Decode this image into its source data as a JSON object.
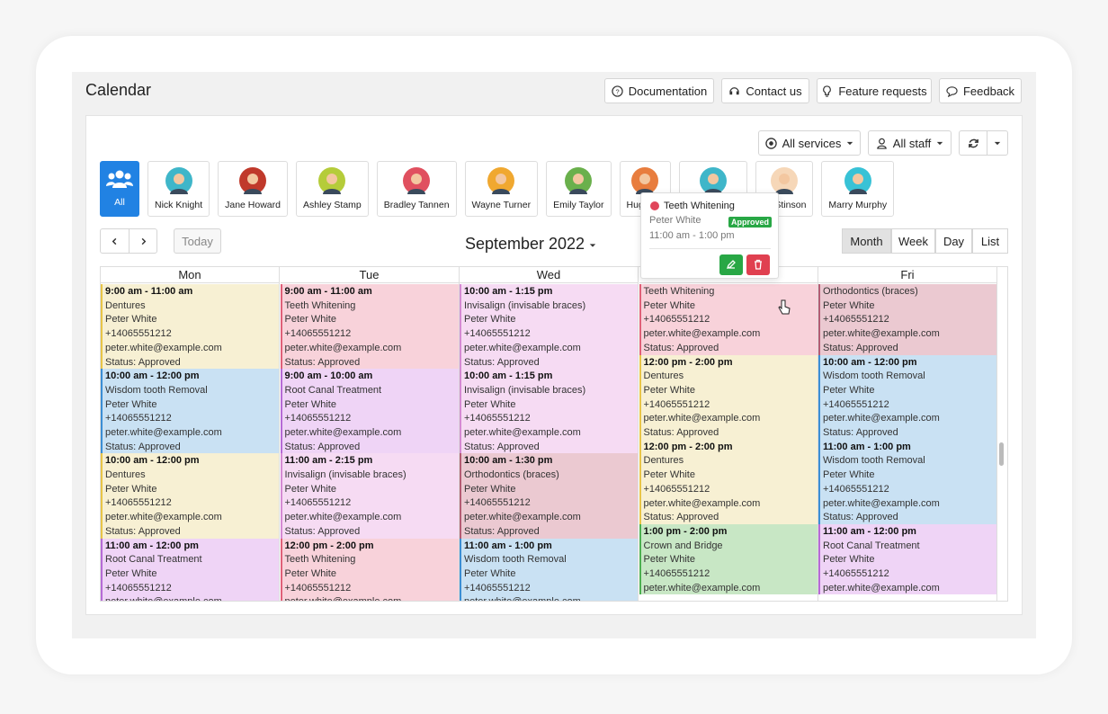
{
  "header": {
    "title": "Calendar",
    "buttons": [
      "Documentation",
      "Contact us",
      "Feature requests",
      "Feedback"
    ]
  },
  "filters": {
    "services": "All services",
    "staff": "All staff"
  },
  "staff": [
    {
      "name": "All",
      "avatar_color": "#1e7fe0"
    },
    {
      "name": "Nick Knight",
      "avatar_color": "#3fb6c9"
    },
    {
      "name": "Jane Howard",
      "avatar_color": "#c0392b"
    },
    {
      "name": "Ashley Stamp",
      "avatar_color": "#b5cc3a"
    },
    {
      "name": "Bradley Tannen",
      "avatar_color": "#e0505f"
    },
    {
      "name": "Wayne Turner",
      "avatar_color": "#f0a830"
    },
    {
      "name": "Emily Taylor",
      "avatar_color": "#6ab04c"
    },
    {
      "name": "Hugh Ca",
      "avatar_color": "#e87d3e"
    },
    {
      "avatar_color": "#3fb6c9"
    },
    {
      "name": "cy Stinson",
      "avatar_color": "#f6d7b8"
    },
    {
      "name": "Marry Murphy",
      "avatar_color": "#38c2d6"
    }
  ],
  "nav": {
    "today": "Today",
    "title": "September 2022",
    "views": [
      "Month",
      "Week",
      "Day",
      "List"
    ],
    "active_view": 0
  },
  "columns": [
    {
      "day": "Mon",
      "events": [
        {
          "time": "9:00 am - 11:00 am",
          "service": "Dentures",
          "client": "Peter White",
          "phone": "+14065551212",
          "email": "peter.white@example.com",
          "status": "Status: Approved",
          "color": "#f7f0d3",
          "border": "#e8c547"
        },
        {
          "time": "10:00 am - 12:00 pm",
          "service": "Wisdom tooth Removal",
          "client": "Peter White",
          "phone": "+14065551212",
          "email": "peter.white@example.com",
          "status": "Status: Approved",
          "color": "#c9e1f3",
          "border": "#3b8ed4"
        },
        {
          "time": "10:00 am - 12:00 pm",
          "service": "Dentures",
          "client": "Peter White",
          "phone": "+14065551212",
          "email": "peter.white@example.com",
          "status": "Status: Approved",
          "color": "#f7f0d3",
          "border": "#e8c547"
        },
        {
          "time": "11:00 am - 12:00 pm",
          "service": "Root Canal Treatment",
          "client": "Peter White",
          "phone": "+14065551212",
          "email": "peter.white@example.com",
          "color": "#efd4f6",
          "border": "#b66ad6"
        }
      ]
    },
    {
      "day": "Tue",
      "events": [
        {
          "time": "9:00 am - 11:00 am",
          "service": "Teeth Whitening",
          "client": "Peter White",
          "phone": "+14065551212",
          "email": "peter.white@example.com",
          "status": "Status: Approved",
          "color": "#f8d2da",
          "border": "#e06078"
        },
        {
          "time": "9:00 am - 10:00 am",
          "service": "Root Canal Treatment",
          "client": "Peter White",
          "phone": "+14065551212",
          "email": "peter.white@example.com",
          "status": "Status: Approved",
          "color": "#efd4f6",
          "border": "#b66ad6"
        },
        {
          "time": "11:00 am - 2:15 pm",
          "service": "Invisalign (invisable braces)",
          "client": "Peter White",
          "phone": "+14065551212",
          "email": "peter.white@example.com",
          "status": "Status: Approved",
          "color": "#f6dbf3",
          "border": "#d58ad3"
        },
        {
          "time": "12:00 pm - 2:00 pm",
          "service": "Teeth Whitening",
          "client": "Peter White",
          "phone": "+14065551212",
          "email": "peter.white@example.com",
          "color": "#f8d2da",
          "border": "#e06078"
        }
      ]
    },
    {
      "day": "Wed",
      "events": [
        {
          "time": "10:00 am - 1:15 pm",
          "service": "Invisalign (invisable braces)",
          "client": "Peter White",
          "phone": "+14065551212",
          "email": "peter.white@example.com",
          "status": "Status: Approved",
          "color": "#f6dbf3",
          "border": "#d58ad3"
        },
        {
          "time": "10:00 am - 1:15 pm",
          "service": "Invisalign (invisable braces)",
          "client": "Peter White",
          "phone": "+14065551212",
          "email": "peter.white@example.com",
          "status": "Status: Approved",
          "color": "#f6dbf3",
          "border": "#d58ad3"
        },
        {
          "time": "10:00 am - 1:30 pm",
          "service": "Orthodontics (braces)",
          "client": "Peter White",
          "phone": "+14065551212",
          "email": "peter.white@example.com",
          "status": "Status: Approved",
          "color": "#ebc9d1",
          "border": "#b45c73"
        },
        {
          "time": "11:00 am - 1:00 pm",
          "service": "Wisdom tooth Removal",
          "client": "Peter White",
          "phone": "+14065551212",
          "email": "peter.white@example.com",
          "color": "#c9e1f3",
          "border": "#3b8ed4"
        }
      ]
    },
    {
      "events": [
        {
          "service": "Teeth Whitening",
          "client": "Peter White",
          "phone": "+14065551212",
          "email": "peter.white@example.com",
          "status": "Status: Approved",
          "color": "#f8d2da",
          "border": "#e06078"
        },
        {
          "time": "12:00 pm - 2:00 pm",
          "service": "Dentures",
          "client": "Peter White",
          "phone": "+14065551212",
          "email": "peter.white@example.com",
          "status": "Status: Approved",
          "color": "#f7f0d3",
          "border": "#e8c547"
        },
        {
          "time": "12:00 pm - 2:00 pm",
          "service": "Dentures",
          "client": "Peter White",
          "phone": "+14065551212",
          "email": "peter.white@example.com",
          "status": "Status: Approved",
          "color": "#f7f0d3",
          "border": "#e8c547"
        },
        {
          "time": "1:00 pm - 2:00 pm",
          "service": "Crown and Bridge",
          "client": "Peter White",
          "phone": "+14065551212",
          "email": "peter.white@example.com",
          "color": "#c8e7c5",
          "border": "#4caf50"
        }
      ]
    },
    {
      "day": "Fri",
      "events": [
        {
          "service": "Orthodontics (braces)",
          "client": "Peter White",
          "phone": "+14065551212",
          "email": "peter.white@example.com",
          "status": "Status: Approved",
          "color": "#ebc9d1",
          "border": "#b45c73"
        },
        {
          "time": "10:00 am - 12:00 pm",
          "service": "Wisdom tooth Removal",
          "client": "Peter White",
          "phone": "+14065551212",
          "email": "peter.white@example.com",
          "status": "Status: Approved",
          "color": "#c9e1f3",
          "border": "#3b8ed4"
        },
        {
          "time": "11:00 am - 1:00 pm",
          "service": "Wisdom tooth Removal",
          "client": "Peter White",
          "phone": "+14065551212",
          "email": "peter.white@example.com",
          "status": "Status: Approved",
          "color": "#c9e1f3",
          "border": "#3b8ed4"
        },
        {
          "time": "11:00 am - 12:00 pm",
          "service": "Root Canal Treatment",
          "client": "Peter White",
          "phone": "+14065551212",
          "email": "peter.white@example.com",
          "color": "#efd4f6",
          "border": "#b66ad6"
        }
      ]
    }
  ],
  "popup": {
    "service": "Teeth Whitening",
    "client": "Peter White",
    "status": "Approved",
    "time": "11:00 am - 1:00 pm"
  }
}
